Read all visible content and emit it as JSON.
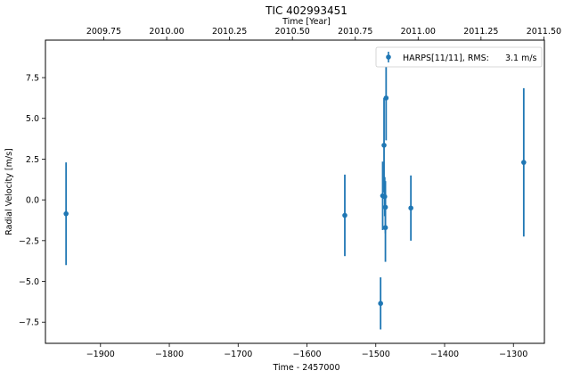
{
  "chart_data": {
    "type": "scatter",
    "title": "TIC 402993451",
    "xlabel": "Time - 2457000",
    "ylabel": "Radial Velocity [m/s]",
    "top_xlabel": "Time [Year]",
    "xlim": [
      -1980,
      -1255
    ],
    "ylim": [
      -8.8,
      9.8
    ],
    "xticks": [
      -1900,
      -1800,
      -1700,
      -1600,
      -1500,
      -1400,
      -1300
    ],
    "xtick_labels": [
      "−1900",
      "−1800",
      "−1700",
      "−1600",
      "−1500",
      "−1400",
      "−1300"
    ],
    "yticks": [
      -7.5,
      -5.0,
      -2.5,
      0.0,
      2.5,
      5.0,
      7.5
    ],
    "ytick_labels": [
      "−7.5",
      "−5.0",
      "−2.5",
      "0.0",
      "2.5",
      "5.0",
      "7.5"
    ],
    "top_ticks": [
      2009.75,
      2010.0,
      2010.25,
      2010.5,
      2010.75,
      2011.0,
      2011.25,
      2011.5
    ],
    "top_tick_labels": [
      "2009.75",
      "2010.00",
      "2010.25",
      "2010.50",
      "2010.75",
      "2011.00",
      "2011.25",
      "2011.50"
    ],
    "legend_position": "top-right",
    "color": "#1f77b4",
    "series": [
      {
        "name": "HARPS[11/11], RMS:      3.1 m/s",
        "x": [
          -1950,
          -1545,
          -1493,
          -1490,
          -1488,
          -1487,
          -1486,
          -1486,
          -1485,
          -1449,
          -1285
        ],
        "y": [
          -0.85,
          -0.95,
          -6.35,
          0.25,
          3.35,
          0.2,
          -0.45,
          -1.7,
          6.25,
          -0.5,
          2.3
        ],
        "err": [
          3.15,
          2.5,
          1.6,
          2.1,
          2.9,
          1.2,
          1.6,
          2.1,
          2.6,
          2.0,
          4.55
        ]
      }
    ]
  }
}
